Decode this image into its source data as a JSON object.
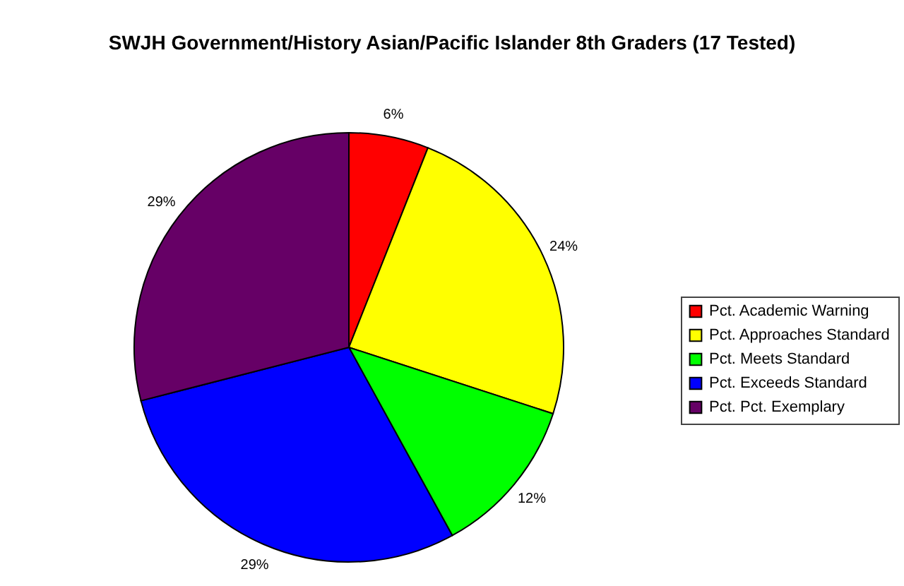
{
  "chart_data": {
    "type": "pie",
    "title": "SWJH Government/History Asian/Pacific Islander 8th Graders (17 Tested)",
    "categories": [
      "Pct. Academic Warning",
      "Pct. Approaches Standard",
      "Pct. Meets Standard",
      "Pct. Exceeds Standard",
      "Pct. Pct. Exemplary"
    ],
    "values": [
      6,
      24,
      12,
      29,
      29
    ],
    "value_labels": [
      "6%",
      "24%",
      "12%",
      "29%",
      "29%"
    ],
    "colors": [
      "#ff0000",
      "#ffff00",
      "#00ff00",
      "#0000ff",
      "#660066"
    ],
    "legend": "right"
  }
}
